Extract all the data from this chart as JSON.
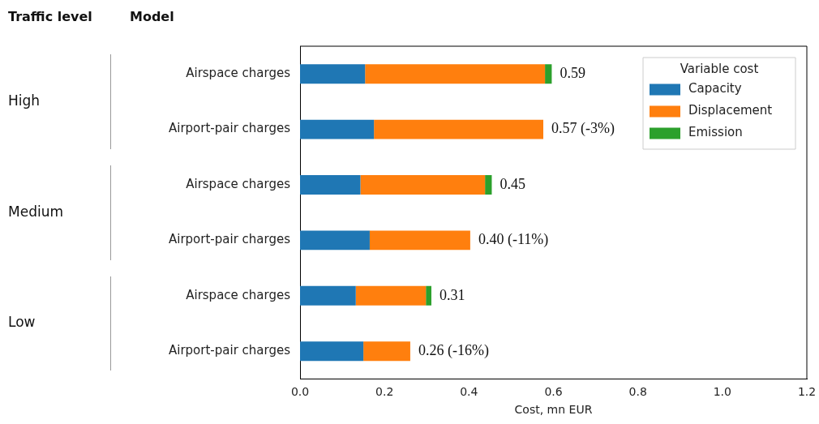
{
  "chart_data": {
    "type": "bar",
    "orientation": "horizontal",
    "stacked": true,
    "categories": [
      "Airspace charges",
      "Airport-pair charges",
      "Airspace charges",
      "Airport-pair charges",
      "Airspace charges",
      "Airport-pair charges"
    ],
    "series": [
      {
        "name": "Capacity",
        "color": "#1f77b4",
        "values": [
          0.154,
          0.175,
          0.143,
          0.165,
          0.132,
          0.15
        ]
      },
      {
        "name": "Displacement",
        "color": "#ff7f0e",
        "values": [
          0.426,
          0.401,
          0.295,
          0.238,
          0.166,
          0.111
        ]
      },
      {
        "name": "Emission",
        "color": "#2ca02c",
        "values": [
          0.016,
          null,
          0.016,
          null,
          0.013,
          null
        ]
      }
    ],
    "totals": [
      "0.59",
      "0.57 (-3%)",
      "0.45",
      "0.40 (-11%)",
      "0.31",
      "0.26 (-16%)"
    ],
    "xlabel": "Cost, mn EUR",
    "xlim": [
      0,
      1.2
    ],
    "xticks": [
      {
        "value": 0,
        "label": "0.0"
      },
      0.2,
      0.4,
      0.6,
      0.8,
      {
        "value": 1,
        "label": "1.0"
      },
      1.2
    ],
    "legend": "top right",
    "legend_title": "Variable cost",
    "grid": false,
    "annotations": [
      "Traffic level",
      "Model",
      "High",
      "Medium",
      "Low"
    ]
  }
}
